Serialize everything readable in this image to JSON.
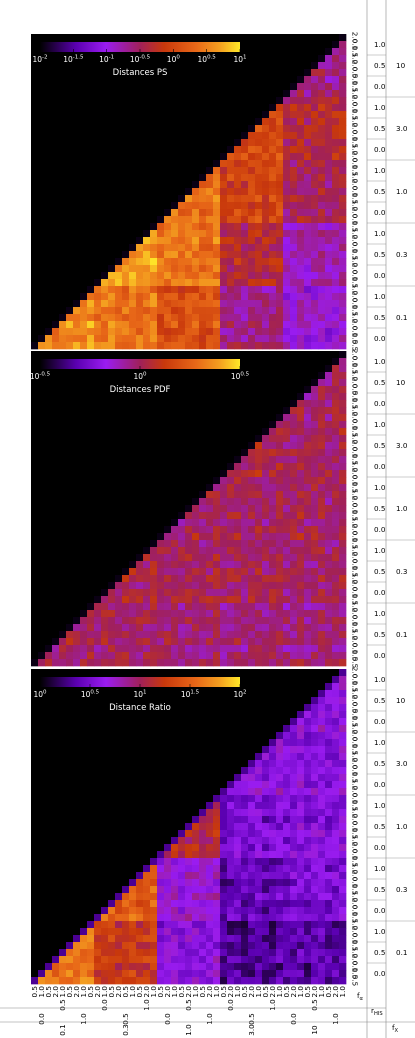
{
  "chart_data": {
    "type": "heatmap",
    "n": 45,
    "colormap": [
      "#000000",
      "#5a00b0",
      "#9a1cf0",
      "#a0205a",
      "#c8380c",
      "#e86818",
      "#f4a020",
      "#ffe828"
    ],
    "row_labels": {
      "f_alpha": [
        "2.0",
        "0.1",
        "0.5",
        "1.0",
        "2.0",
        "0.5",
        "0.1",
        "0.5",
        "1.0",
        "2.0",
        "0.1",
        "0.5",
        "1.0",
        "2.0",
        "0.1",
        "0.5",
        "1.0",
        "2.0",
        "0.1",
        "0.5",
        "1.0",
        "2.0",
        "0.1",
        "0.5",
        "1.0",
        "2.0",
        "0.1",
        "0.5",
        "1.0",
        "2.0",
        "0.1",
        "0.5",
        "1.0",
        "2.0",
        "0.1",
        "0.5",
        "1.0",
        "2.0",
        "0.1",
        "0.5",
        "1.0",
        "2.0",
        "0.1",
        "0.5",
        "0.5"
      ],
      "r_HIS": [
        "1.0",
        "0.5",
        "0.0",
        "1.0",
        "0.5",
        "0.0",
        "1.0",
        "0.5",
        "0.0",
        "1.0",
        "0.5",
        "0.0",
        "1.0",
        "0.5",
        "0.0"
      ],
      "f_X": [
        "10",
        "3.0",
        "1.0",
        "0.3",
        "0.1"
      ]
    },
    "col_labels": {
      "f_alpha": [
        "0.5",
        "1.0",
        "0.5",
        "2.0",
        "1.0",
        "0.5",
        "2.0",
        "1.0",
        "0.5",
        "2.0",
        "1.0",
        "0.5",
        "2.0",
        "0.5",
        "1.0",
        "0.5",
        "2.0",
        "1.0",
        "0.5",
        "2.0",
        "1.0",
        "0.5",
        "2.0",
        "1.0",
        "0.5",
        "2.0",
        "1.0",
        "0.5",
        "2.0",
        "1.0",
        "0.5",
        "2.0",
        "1.0",
        "0.5",
        "2.0",
        "1.0",
        "0.5",
        "2.0",
        "1.0",
        "0.5",
        "2.0",
        "1.0",
        "0.5",
        "2.0",
        "1.0"
      ],
      "r_HIS": [
        "0.0",
        "0.5",
        "1.0",
        "0.0",
        "0.5",
        "1.0",
        "0.0",
        "0.5",
        "1.0",
        "0.0",
        "0.5",
        "1.0",
        "0.0",
        "0.5",
        "1.0"
      ],
      "f_X": [
        "0.1",
        "0.3",
        "1.0",
        "3.0",
        "10"
      ],
      "axis_f_alpha": "f_α",
      "axis_r_HIS": "r_HIS",
      "axis_f_X": "f_X"
    },
    "panels": [
      {
        "title": "Distances PS",
        "colorbar_ticks": [
          "10^-2",
          "10^-1.5",
          "10^-1",
          "10^-0.5",
          "10^0",
          "10^0.5",
          "10^1"
        ],
        "log_range": [
          -2,
          1
        ],
        "block_means": [
          [
            0.85
          ],
          [
            0.8,
            0.88
          ],
          [
            0.7,
            0.8,
            0.78
          ],
          [
            0.45,
            0.55,
            0.65,
            0.68
          ],
          [
            0.35,
            0.4,
            0.5,
            0.55,
            0.45
          ]
        ],
        "dark_diagonal": true
      },
      {
        "title": "Distances PDF",
        "colorbar_ticks": [
          "10^-0.5",
          "10^0",
          "10^0.5"
        ],
        "log_range": [
          -0.5,
          0.5
        ],
        "block_means": [
          [
            0.5
          ],
          [
            0.5,
            0.52
          ],
          [
            0.48,
            0.5,
            0.5
          ],
          [
            0.47,
            0.5,
            0.5,
            0.52
          ],
          [
            0.46,
            0.48,
            0.5,
            0.5,
            0.48
          ]
        ],
        "dark_diagonal": true
      },
      {
        "title": "Distance Ratio",
        "colorbar_ticks": [
          "10^0",
          "10^0.5",
          "10^1",
          "10^1.5",
          "10^2"
        ],
        "log_range": [
          0,
          2
        ],
        "block_means": [
          [
            0.8
          ],
          [
            0.62,
            0.75
          ],
          [
            0.3,
            0.35,
            0.55
          ],
          [
            0.15,
            0.2,
            0.25,
            0.32
          ],
          [
            0.18,
            0.25,
            0.28,
            0.3,
            0.3
          ]
        ],
        "dark_diagonal": false
      }
    ]
  }
}
